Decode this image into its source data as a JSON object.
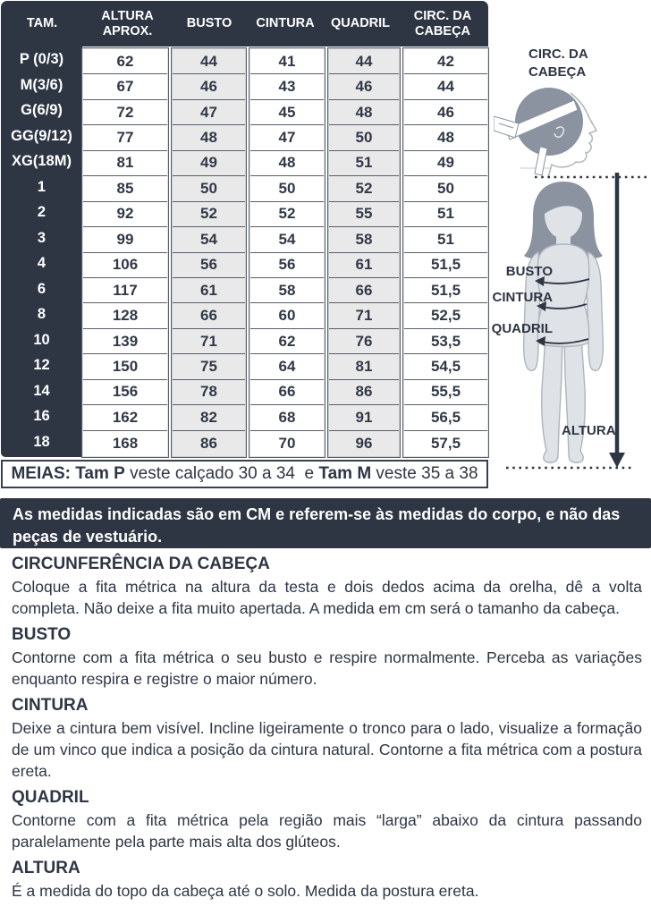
{
  "table": {
    "headers": [
      "TAM.",
      "ALTURA APROX.",
      "BUSTO",
      "CINTURA",
      "QUADRIL",
      "CIRC. DA CABEÇA"
    ],
    "rows": [
      {
        "size": "P (0/3)",
        "values": [
          "62",
          "44",
          "41",
          "44",
          "42"
        ]
      },
      {
        "size": "M(3/6)",
        "values": [
          "67",
          "46",
          "43",
          "46",
          "44"
        ]
      },
      {
        "size": "G(6/9)",
        "values": [
          "72",
          "47",
          "45",
          "48",
          "46"
        ]
      },
      {
        "size": "GG(9/12)",
        "values": [
          "77",
          "48",
          "47",
          "50",
          "48"
        ]
      },
      {
        "size": "XG(18M)",
        "values": [
          "81",
          "49",
          "48",
          "51",
          "49"
        ]
      },
      {
        "size": "1",
        "values": [
          "85",
          "50",
          "50",
          "52",
          "50"
        ]
      },
      {
        "size": "2",
        "values": [
          "92",
          "52",
          "52",
          "55",
          "51"
        ]
      },
      {
        "size": "3",
        "values": [
          "99",
          "54",
          "54",
          "58",
          "51"
        ]
      },
      {
        "size": "4",
        "values": [
          "106",
          "56",
          "56",
          "61",
          "51,5"
        ]
      },
      {
        "size": "6",
        "values": [
          "117",
          "61",
          "58",
          "66",
          "51,5"
        ]
      },
      {
        "size": "8",
        "values": [
          "128",
          "66",
          "60",
          "71",
          "52,5"
        ]
      },
      {
        "size": "10",
        "values": [
          "139",
          "71",
          "62",
          "76",
          "53,5"
        ]
      },
      {
        "size": "12",
        "values": [
          "150",
          "75",
          "64",
          "81",
          "54,5"
        ]
      },
      {
        "size": "14",
        "values": [
          "156",
          "78",
          "66",
          "86",
          "55,5"
        ]
      },
      {
        "size": "16",
        "values": [
          "162",
          "82",
          "68",
          "91",
          "56,5"
        ]
      },
      {
        "size": "18",
        "values": [
          "168",
          "86",
          "70",
          "96",
          "57,5"
        ]
      }
    ],
    "meias_parts": [
      {
        "text": "MEIAS: Tam P",
        "bold": true
      },
      {
        "text": " veste calçado 30 a 34  e ",
        "bold": false
      },
      {
        "text": "Tam M",
        "bold": true
      },
      {
        "text": " veste 35 a 38",
        "bold": false
      }
    ]
  },
  "note": "As medidas indicadas são em CM e referem-se às medidas do corpo, e não das peças de vestuário.",
  "diagram": {
    "head_label": "CIRC. DA CABEÇA",
    "busto_label": "BUSTO",
    "cintura_label": "CINTURA",
    "quadril_label": "QUADRIL",
    "altura_label": "ALTURA"
  },
  "sections": [
    {
      "title": "CIRCUNFERÊNCIA DA CABEÇA",
      "body": "Coloque a fita métrica na altura da testa e dois dedos acima da orelha, dê a volta completa. Não deixe a fita muito apertada. A medida em cm será o tamanho da cabeça."
    },
    {
      "title": "BUSTO",
      "body": "Contorne com a fita métrica o seu busto e respire normalmente. Perceba as variações enquanto respira e registre o maior número."
    },
    {
      "title": "CINTURA",
      "body": "Deixe a cintura bem visível. Incline ligeiramente o tronco para o lado, visualize a formação de um vinco que indica a posição da cintura natural. Contorne a fita métrica com a postura ereta."
    },
    {
      "title": "QUADRIL",
      "body": "Contorne com a fita métrica pela região mais “larga” abaixo da cintura passando paralelamente pela parte mais alta dos glúteos."
    },
    {
      "title": "ALTURA",
      "body": "É a medida do topo da cabeça até o solo. Medida da postura ereta."
    }
  ],
  "colors": {
    "navy": "#2e3644",
    "cell_shaded": "#e9e9ea",
    "figure_body": "#dfe2e6",
    "figure_hair": "#8b93a0",
    "figure_outline": "#aeb5bd",
    "white": "#ffffff"
  }
}
